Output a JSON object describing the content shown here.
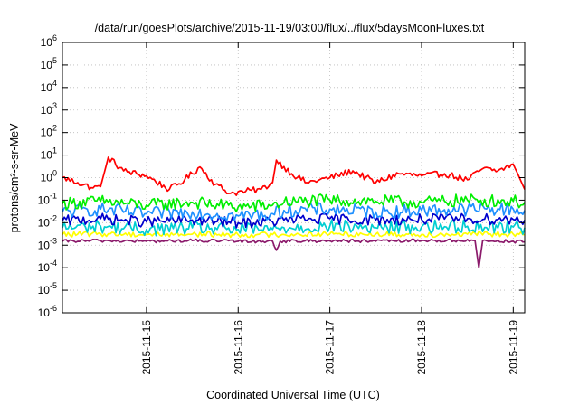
{
  "chart_data": {
    "type": "line",
    "title": "/data/run/goesPlots/archive/2015-11-19/03:00/flux/../flux/5daysMoonFluxes.txt",
    "xlabel": "Coordinated Universal Time (UTC)",
    "ylabel": "protons/cm²-s-sr-MeV",
    "y_scale": "log",
    "ylim": [
      1e-06,
      1000000.0
    ],
    "xlim": [
      "2015-11-14 02:00",
      "2015-11-19 03:00"
    ],
    "y_ticks": [
      {
        "base": "10",
        "exp": "-6"
      },
      {
        "base": "10",
        "exp": "-5"
      },
      {
        "base": "10",
        "exp": "-4"
      },
      {
        "base": "10",
        "exp": "-3"
      },
      {
        "base": "10",
        "exp": "-2"
      },
      {
        "base": "10",
        "exp": "-1"
      },
      {
        "base": "10",
        "exp": "0"
      },
      {
        "base": "10",
        "exp": "1"
      },
      {
        "base": "10",
        "exp": "2"
      },
      {
        "base": "10",
        "exp": "3"
      },
      {
        "base": "10",
        "exp": "4"
      },
      {
        "base": "10",
        "exp": "5"
      },
      {
        "base": "10",
        "exp": "6"
      }
    ],
    "x_ticks": [
      "2015-11-15",
      "2015-11-16",
      "2015-11-17",
      "2015-11-18",
      "2015-11-19"
    ],
    "grid": true,
    "legend": "none",
    "series": [
      {
        "color": "#ff0000",
        "x": [
          "2015-11-14 02:00",
          "2015-11-14 06:00",
          "2015-11-14 10:00",
          "2015-11-14 12:00",
          "2015-11-14 14:00",
          "2015-11-14 18:00",
          "2015-11-15 00:00",
          "2015-11-15 06:00",
          "2015-11-15 10:00",
          "2015-11-15 14:00",
          "2015-11-15 18:00",
          "2015-11-15 22:00",
          "2015-11-16 02:00",
          "2015-11-16 06:00",
          "2015-11-16 09:00",
          "2015-11-16 10:00",
          "2015-11-16 14:00",
          "2015-11-16 18:00",
          "2015-11-17 00:00",
          "2015-11-17 06:00",
          "2015-11-17 12:00",
          "2015-11-17 18:00",
          "2015-11-18 00:00",
          "2015-11-18 06:00",
          "2015-11-18 12:00",
          "2015-11-18 16:00",
          "2015-11-18 20:00",
          "2015-11-19 00:00",
          "2015-11-19 03:00"
        ],
        "y": [
          1.0,
          0.6,
          0.35,
          0.4,
          8,
          2,
          1.2,
          0.3,
          0.8,
          3,
          0.5,
          0.2,
          0.25,
          0.3,
          0.6,
          6,
          1.5,
          0.6,
          1,
          2,
          0.6,
          1.5,
          1.2,
          1.5,
          0.8,
          2.5,
          2,
          4,
          0.3
        ]
      },
      {
        "color": "#00ee00",
        "x": [
          "2015-11-14 02:00",
          "2015-11-14 12:00",
          "2015-11-15 00:00",
          "2015-11-15 12:00",
          "2015-11-16 00:00",
          "2015-11-16 09:00",
          "2015-11-16 12:00",
          "2015-11-17 00:00",
          "2015-11-17 12:00",
          "2015-11-18 00:00",
          "2015-11-18 12:00",
          "2015-11-19 00:00",
          "2015-11-19 03:00"
        ],
        "y": [
          0.07,
          0.09,
          0.06,
          0.08,
          0.05,
          0.06,
          0.08,
          0.1,
          0.09,
          0.08,
          0.1,
          0.09,
          0.08
        ]
      },
      {
        "color": "#1e90ff",
        "x": [
          "2015-11-14 02:00",
          "2015-11-14 12:00",
          "2015-11-15 00:00",
          "2015-11-15 12:00",
          "2015-11-16 00:00",
          "2015-11-16 09:00",
          "2015-11-16 12:00",
          "2015-11-17 00:00",
          "2015-11-17 12:00",
          "2015-11-18 00:00",
          "2015-11-18 12:00",
          "2015-11-19 00:00",
          "2015-11-19 03:00"
        ],
        "y": [
          0.03,
          0.04,
          0.025,
          0.03,
          0.02,
          0.025,
          0.035,
          0.04,
          0.03,
          0.035,
          0.04,
          0.04,
          0.035
        ]
      },
      {
        "color": "#0000cd",
        "x": [
          "2015-11-14 02:00",
          "2015-11-14 12:00",
          "2015-11-15 00:00",
          "2015-11-15 12:00",
          "2015-11-16 00:00",
          "2015-11-16 09:00",
          "2015-11-16 12:00",
          "2015-11-17 00:00",
          "2015-11-17 12:00",
          "2015-11-18 00:00",
          "2015-11-18 12:00",
          "2015-11-19 00:00",
          "2015-11-19 03:00"
        ],
        "y": [
          0.012,
          0.015,
          0.011,
          0.013,
          0.01,
          0.011,
          0.013,
          0.015,
          0.013,
          0.014,
          0.015,
          0.014,
          0.013
        ]
      },
      {
        "color": "#00ced1",
        "x": [
          "2015-11-14 02:00",
          "2015-11-14 12:00",
          "2015-11-15 00:00",
          "2015-11-15 12:00",
          "2015-11-16 00:00",
          "2015-11-16 09:00",
          "2015-11-16 12:00",
          "2015-11-17 00:00",
          "2015-11-17 12:00",
          "2015-11-18 00:00",
          "2015-11-18 12:00",
          "2015-11-19 00:00",
          "2015-11-19 03:00"
        ],
        "y": [
          0.006,
          0.007,
          0.005,
          0.006,
          0.005,
          0.005,
          0.006,
          0.007,
          0.006,
          0.0065,
          0.007,
          0.0065,
          0.006
        ]
      },
      {
        "color": "#ffff00",
        "x": [
          "2015-11-14 02:00",
          "2015-11-14 12:00",
          "2015-11-15 00:00",
          "2015-11-15 12:00",
          "2015-11-16 00:00",
          "2015-11-16 12:00",
          "2015-11-17 00:00",
          "2015-11-17 12:00",
          "2015-11-18 00:00",
          "2015-11-18 12:00",
          "2015-11-19 00:00",
          "2015-11-19 03:00"
        ],
        "y": [
          0.003,
          0.0032,
          0.003,
          0.0031,
          0.0029,
          0.003,
          0.0032,
          0.0031,
          0.003,
          0.0031,
          0.0031,
          0.003
        ]
      },
      {
        "color": "#8b1a6b",
        "x": [
          "2015-11-14 02:00",
          "2015-11-14 12:00",
          "2015-11-15 00:00",
          "2015-11-15 12:00",
          "2015-11-16 00:00",
          "2015-11-16 09:00",
          "2015-11-16 10:00",
          "2015-11-16 11:00",
          "2015-11-17 00:00",
          "2015-11-17 12:00",
          "2015-11-18 00:00",
          "2015-11-18 14:00",
          "2015-11-18 15:00",
          "2015-11-18 16:00",
          "2015-11-19 00:00",
          "2015-11-19 03:00"
        ],
        "y": [
          0.0015,
          0.0016,
          0.0015,
          0.0016,
          0.0015,
          0.0015,
          0.0006,
          0.0015,
          0.0016,
          0.0015,
          0.0016,
          0.0016,
          0.0001,
          0.0016,
          0.0015,
          0.0014
        ]
      }
    ]
  }
}
